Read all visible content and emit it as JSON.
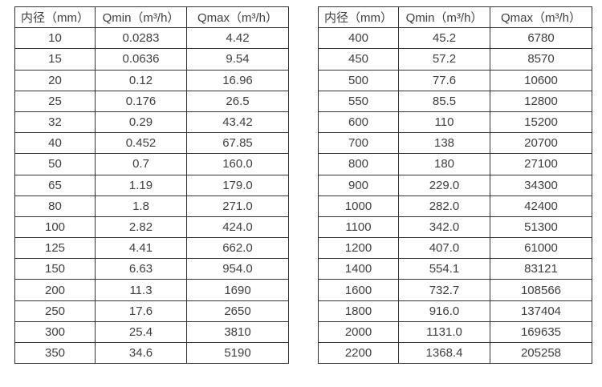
{
  "colors": {
    "border": "#333333",
    "text": "#404040",
    "background": "#ffffff"
  },
  "tables": [
    {
      "columns": [
        "内径（mm）",
        "Qmin（m³/h）",
        "Qmax（m³/h）"
      ],
      "rows": [
        [
          "10",
          "0.0283",
          "4.42"
        ],
        [
          "15",
          "0.0636",
          "9.54"
        ],
        [
          "20",
          "0.12",
          "16.96"
        ],
        [
          "25",
          "0.176",
          "26.5"
        ],
        [
          "32",
          "0.29",
          "43.42"
        ],
        [
          "40",
          "0.452",
          "67.85"
        ],
        [
          "50",
          "0.7",
          "160.0"
        ],
        [
          "65",
          "1.19",
          "179.0"
        ],
        [
          "80",
          "1.8",
          "271.0"
        ],
        [
          "100",
          "2.82",
          "424.0"
        ],
        [
          "125",
          "4.41",
          "662.0"
        ],
        [
          "150",
          "6.63",
          "954.0"
        ],
        [
          "200",
          "11.3",
          "1690"
        ],
        [
          "250",
          "17.6",
          "2650"
        ],
        [
          "300",
          "25.4",
          "3810"
        ],
        [
          "350",
          "34.6",
          "5190"
        ]
      ]
    },
    {
      "columns": [
        "内径（mm）",
        "Qmin（m³/h）",
        "Qmax（m³/h）"
      ],
      "rows": [
        [
          "400",
          "45.2",
          "6780"
        ],
        [
          "450",
          "57.2",
          "8570"
        ],
        [
          "500",
          "77.6",
          "10600"
        ],
        [
          "550",
          "85.5",
          "12800"
        ],
        [
          "600",
          "110",
          "15200"
        ],
        [
          "700",
          "138",
          "20700"
        ],
        [
          "800",
          "180",
          "27100"
        ],
        [
          "900",
          "229.0",
          "34300"
        ],
        [
          "1000",
          "282.0",
          "42400"
        ],
        [
          "1100",
          "342.0",
          "51300"
        ],
        [
          "1200",
          "407.0",
          "61000"
        ],
        [
          "1400",
          "554.1",
          "83121"
        ],
        [
          "1600",
          "732.7",
          "108566"
        ],
        [
          "1800",
          "916.0",
          "137404"
        ],
        [
          "2000",
          "1131.0",
          "169635"
        ],
        [
          "2200",
          "1368.4",
          "205258"
        ]
      ]
    }
  ]
}
